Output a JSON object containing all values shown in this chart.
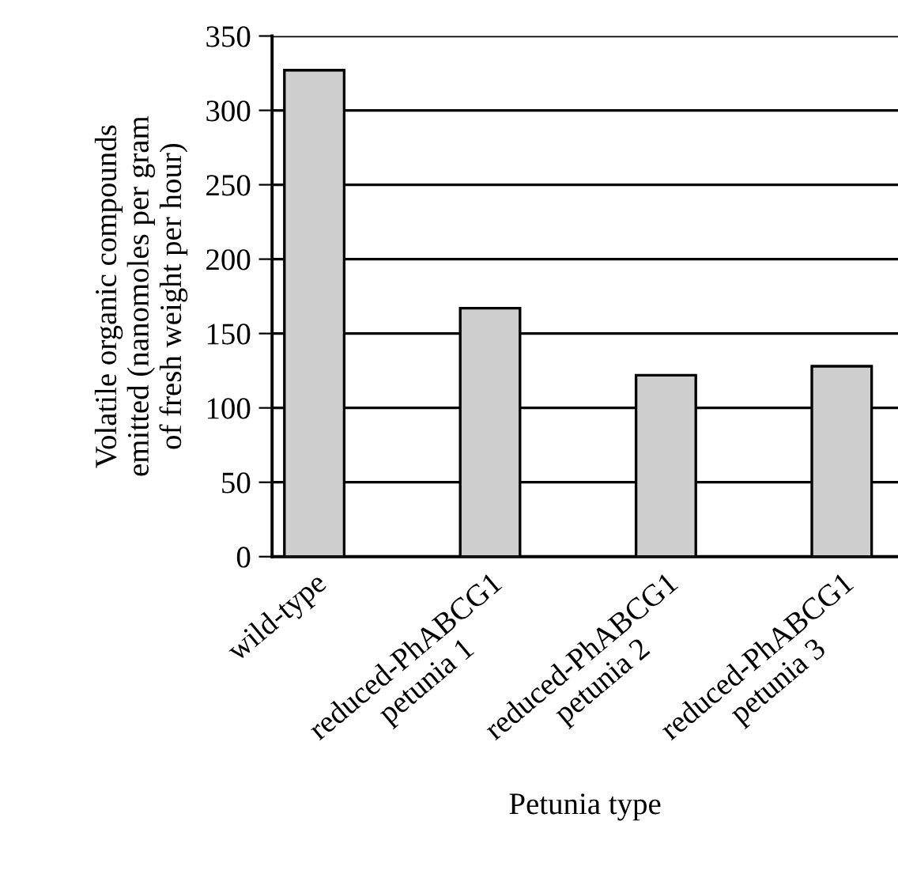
{
  "chart_data": {
    "type": "bar",
    "xlabel": "Petunia type",
    "ylabel": "Volatile organic compounds\nemitted (nanomoles per gram\nof fresh weight per hour)",
    "categories": [
      "wild-type",
      "reduced-PhABCG1\npetunia 1",
      "reduced-PhABCG1\npetunia 2",
      "reduced-PhABCG1\npetunia 3"
    ],
    "values": [
      327,
      167,
      122,
      128
    ],
    "color": "#cfcfcf",
    "ylim": [
      0,
      350
    ],
    "yticks": [
      0,
      50,
      100,
      150,
      200,
      250,
      300,
      350
    ],
    "grid": "y",
    "legend": false
  }
}
